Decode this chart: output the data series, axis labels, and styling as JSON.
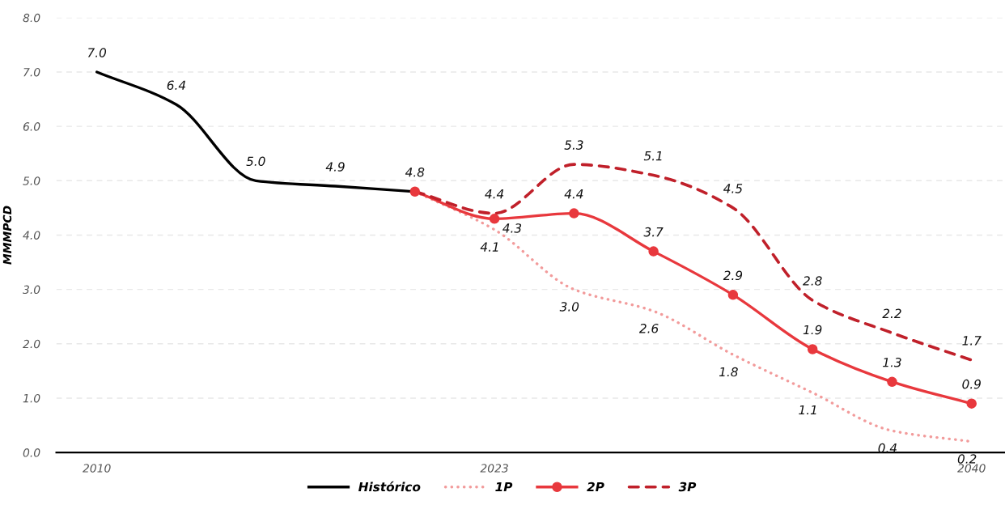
{
  "chart_data": {
    "type": "line",
    "ylabel": "MMMPCD",
    "categories": [
      "2010",
      null,
      null,
      null,
      null,
      "2023",
      null,
      null,
      null,
      null,
      null,
      "2040"
    ],
    "series": [
      {
        "name": "Histórico",
        "color": "#000000",
        "line_style": "solid",
        "values": [
          7.0,
          6.4,
          5.0,
          4.9,
          4.8,
          null,
          null,
          null,
          null,
          null,
          null,
          null
        ],
        "value_labels": [
          "7.0",
          "6.4",
          "5.0",
          "4.9",
          "4.8",
          null,
          null,
          null,
          null,
          null,
          null,
          null
        ]
      },
      {
        "name": "1P",
        "color": "#f29b9b",
        "line_style": "dotted",
        "values": [
          null,
          null,
          null,
          null,
          4.8,
          4.1,
          3.0,
          2.6,
          1.8,
          1.1,
          0.4,
          0.2
        ],
        "value_labels": [
          null,
          null,
          null,
          null,
          null,
          "4.1",
          "3.0",
          "2.6",
          "1.8",
          "1.1",
          "0.4",
          "0.2"
        ]
      },
      {
        "name": "2P",
        "color": "#e8383d",
        "line_style": "solid",
        "marker": "circle",
        "values": [
          null,
          null,
          null,
          null,
          4.8,
          4.3,
          4.4,
          3.7,
          2.9,
          1.9,
          1.3,
          0.9
        ],
        "value_labels": [
          null,
          null,
          null,
          null,
          null,
          "4.3",
          "4.4",
          "3.7",
          "2.9",
          "1.9",
          "1.3",
          "0.9"
        ]
      },
      {
        "name": "3P",
        "color": "#c0202a",
        "line_style": "dashed",
        "values": [
          null,
          null,
          null,
          null,
          4.8,
          4.4,
          5.3,
          5.1,
          4.5,
          2.8,
          2.2,
          1.7
        ],
        "value_labels": [
          null,
          null,
          null,
          null,
          null,
          "4.4",
          "5.3",
          "5.1",
          "4.5",
          "2.8",
          "2.2",
          "1.7"
        ]
      }
    ],
    "ylim": [
      0,
      8
    ],
    "yticks": [
      {
        "value": 0,
        "label": "0.0"
      },
      {
        "value": 1,
        "label": "1.0"
      },
      {
        "value": 2,
        "label": "2.0"
      },
      {
        "value": 3,
        "label": "3.0"
      },
      {
        "value": 4,
        "label": "4.0"
      },
      {
        "value": 5,
        "label": "5.0"
      },
      {
        "value": 6,
        "label": "6.0"
      },
      {
        "value": 7,
        "label": "7.0"
      },
      {
        "value": 8,
        "label": "8.0"
      }
    ],
    "grid": "y",
    "legend": "bottom"
  }
}
